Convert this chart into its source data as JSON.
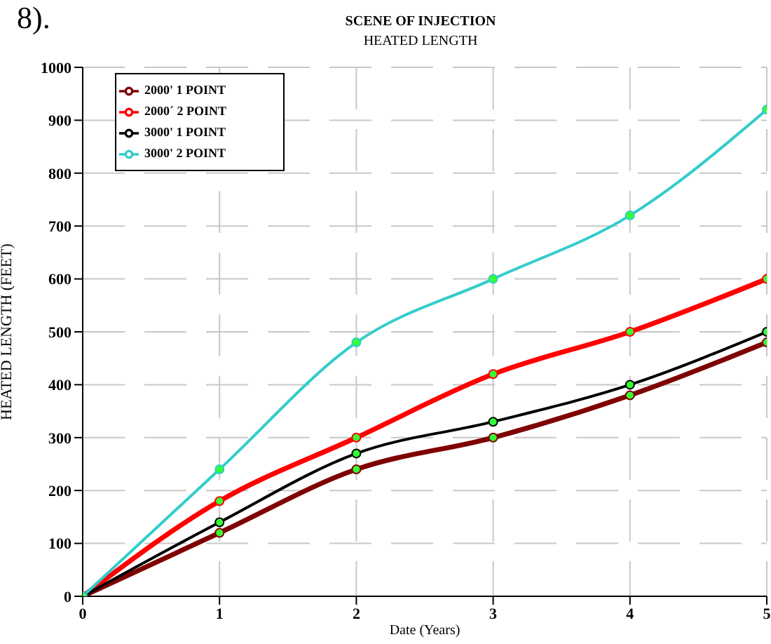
{
  "chart_data": {
    "type": "line",
    "title": "SCENE OF INJECTION",
    "subtitle": "HEATED LENGTH",
    "xlabel": "Date (Years)",
    "ylabel": "HEATED LENGTH (FEET)",
    "annotations": [
      "8)."
    ],
    "x": [
      0,
      1,
      2,
      3,
      4,
      5
    ],
    "xlim": [
      0,
      5
    ],
    "xticks": [
      0,
      1,
      2,
      3,
      4,
      5
    ],
    "ylim": [
      0,
      1000
    ],
    "yticks": [
      0,
      100,
      200,
      300,
      400,
      500,
      600,
      700,
      800,
      900,
      1000
    ],
    "series": [
      {
        "name": "2000' 1 POINT",
        "color": "#7f0000",
        "values": [
          0,
          120,
          240,
          300,
          380,
          480
        ]
      },
      {
        "name": "2000´ 2 POINT",
        "color": "#ff0000",
        "values": [
          0,
          180,
          300,
          420,
          500,
          600
        ]
      },
      {
        "name": "3000' 1 POINT",
        "color": "#000000",
        "values": [
          0,
          140,
          270,
          330,
          400,
          500
        ]
      },
      {
        "name": "3000' 2 POINT",
        "color": "#33cccc",
        "values": [
          0,
          240,
          480,
          600,
          720,
          920
        ]
      }
    ],
    "grid": true,
    "legend": "top left",
    "marker": "circle",
    "line_style": "solid"
  }
}
